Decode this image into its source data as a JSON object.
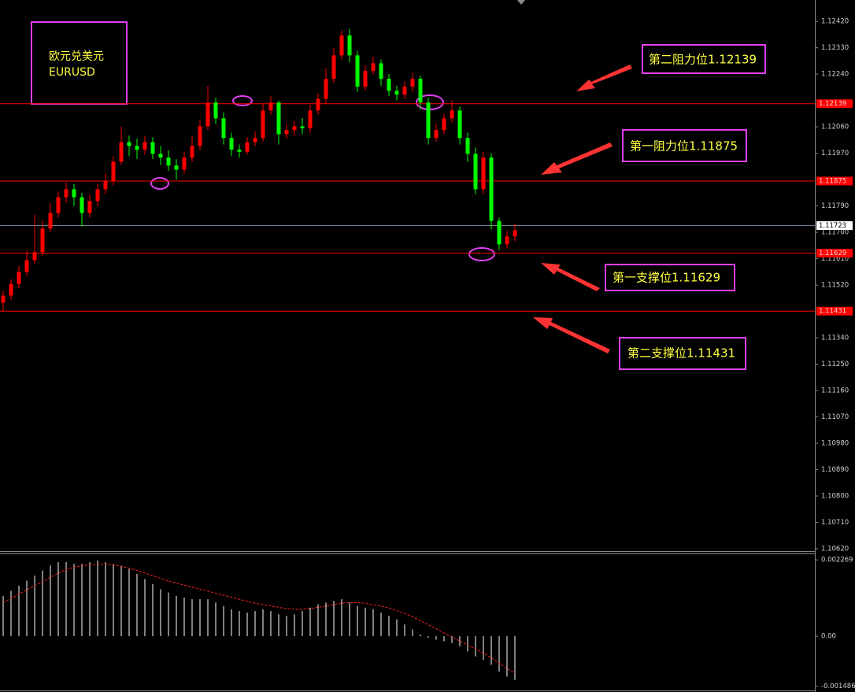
{
  "chart_data": [
    {
      "type": "candlestick",
      "title": "欧元兑美元",
      "subtitle": "EURUSD",
      "annotations": [
        "第二阻力位1.12139",
        "第一阻力位1.11875",
        "第一支撑位1.11629",
        "第二支撑位1.11431"
      ],
      "up_color": "#ff0000",
      "down_color": "#00ff00",
      "ylim": [
        1.10612,
        1.12493
      ],
      "yticks": [
        {
          "value": 1.1242,
          "label": "1.12420"
        },
        {
          "value": 1.1233,
          "label": "1.12330"
        },
        {
          "value": 1.1224,
          "label": "1.12240"
        },
        {
          "value": 1.1206,
          "label": "1.12060"
        },
        {
          "value": 1.1197,
          "label": "1.11970"
        },
        {
          "value": 1.1179,
          "label": "1.11790"
        },
        {
          "value": 1.117,
          "label": "1.11700"
        },
        {
          "value": 1.1161,
          "label": "1.11610"
        },
        {
          "value": 1.1152,
          "label": "1.11520"
        },
        {
          "value": 1.1134,
          "label": "1.11340"
        },
        {
          "value": 1.1125,
          "label": "1.11250"
        },
        {
          "value": 1.1116,
          "label": "1.11160"
        },
        {
          "value": 1.1107,
          "label": "1.11070"
        },
        {
          "value": 1.1098,
          "label": "1.10980"
        },
        {
          "value": 1.1089,
          "label": "1.10890"
        },
        {
          "value": 1.108,
          "label": "1.10800"
        },
        {
          "value": 1.1071,
          "label": "1.10710"
        },
        {
          "value": 1.1062,
          "label": "1.10620"
        }
      ],
      "levels": [
        1.12139,
        1.11875,
        1.11629,
        1.11431
      ],
      "level_color": "#ff0000",
      "last_price": 1.11723,
      "last_price_color": "#708090",
      "open": [
        1.1146,
        1.11484,
        1.11524,
        1.11565,
        1.11605,
        1.11632,
        1.11713,
        1.11766,
        1.1182,
        1.11847,
        1.1182,
        1.11766,
        1.11807,
        1.11847,
        1.11874,
        1.11941,
        1.12008,
        1.11995,
        1.11982,
        1.12008,
        1.11968,
        1.11955,
        1.11928,
        1.11914,
        1.11955,
        1.11995,
        1.12062,
        1.12143,
        1.12089,
        1.12022,
        1.11982,
        1.11975,
        1.12008,
        1.12022,
        1.12116,
        1.12143,
        1.12035,
        1.12049,
        1.12062,
        1.12055,
        1.12116,
        1.12156,
        1.12224,
        1.12304,
        1.12372,
        1.12304,
        1.12197,
        1.12251,
        1.12277,
        1.12224,
        1.12183,
        1.1217,
        1.12197,
        1.12224,
        1.12143,
        1.12022,
        1.12049,
        1.12089,
        1.12116,
        1.12022,
        1.11968,
        1.11847,
        1.11955,
        1.11739,
        1.11659,
        1.11686
      ],
      "high": [
        1.115,
        1.1154,
        1.11585,
        1.1164,
        1.1176,
        1.1174,
        1.118,
        1.1184,
        1.1187,
        1.11865,
        1.11835,
        1.1183,
        1.11865,
        1.119,
        1.1196,
        1.1206,
        1.1203,
        1.1202,
        1.1203,
        1.12025,
        1.11995,
        1.1198,
        1.1195,
        1.11975,
        1.1203,
        1.12085,
        1.122,
        1.1216,
        1.1211,
        1.1204,
        1.12,
        1.12025,
        1.12045,
        1.1214,
        1.12165,
        1.1215,
        1.1207,
        1.1208,
        1.1209,
        1.12135,
        1.12175,
        1.1226,
        1.1233,
        1.1239,
        1.12395,
        1.1232,
        1.1227,
        1.123,
        1.1229,
        1.1224,
        1.122,
        1.12215,
        1.12245,
        1.12235,
        1.1216,
        1.1207,
        1.12105,
        1.1215,
        1.1213,
        1.1204,
        1.1199,
        1.11975,
        1.1197,
        1.1175,
        1.11705,
        1.1173
      ],
      "low": [
        1.11431,
        1.1147,
        1.1151,
        1.1155,
        1.1159,
        1.1162,
        1.117,
        1.1175,
        1.118,
        1.1179,
        1.1172,
        1.1175,
        1.1179,
        1.1183,
        1.1186,
        1.1193,
        1.1196,
        1.1195,
        1.11965,
        1.1195,
        1.1193,
        1.1191,
        1.1188,
        1.119,
        1.1194,
        1.1198,
        1.1205,
        1.1207,
        1.12,
        1.1196,
        1.11955,
        1.11965,
        1.11995,
        1.1201,
        1.121,
        1.12,
        1.1202,
        1.1203,
        1.12035,
        1.1204,
        1.121,
        1.1214,
        1.1221,
        1.1229,
        1.1228,
        1.1218,
        1.12185,
        1.1224,
        1.122,
        1.12165,
        1.1215,
        1.12155,
        1.1218,
        1.1212,
        1.12,
        1.1201,
        1.12035,
        1.12075,
        1.12,
        1.1194,
        1.1183,
        1.1183,
        1.1171,
        1.1164,
        1.11645,
        1.1167
      ],
      "close": [
        1.11484,
        1.11524,
        1.11565,
        1.11605,
        1.11632,
        1.11713,
        1.11766,
        1.1182,
        1.11847,
        1.1182,
        1.11766,
        1.11807,
        1.11847,
        1.11874,
        1.11941,
        1.12008,
        1.11995,
        1.11982,
        1.12008,
        1.11968,
        1.11955,
        1.11928,
        1.11914,
        1.11955,
        1.11995,
        1.12062,
        1.12143,
        1.12089,
        1.12022,
        1.11982,
        1.11975,
        1.12008,
        1.12022,
        1.12116,
        1.12143,
        1.12035,
        1.12049,
        1.12062,
        1.12055,
        1.12116,
        1.12156,
        1.12224,
        1.12304,
        1.12372,
        1.12304,
        1.12197,
        1.12251,
        1.12277,
        1.12224,
        1.12183,
        1.1217,
        1.12197,
        1.12224,
        1.12143,
        1.12022,
        1.12049,
        1.12089,
        1.12116,
        1.12022,
        1.11968,
        1.11847,
        1.11955,
        1.11739,
        1.11659,
        1.11686,
        1.11707
      ]
    },
    {
      "type": "macd",
      "ylim": [
        -0.00161,
        0.00246
      ],
      "yticks": [
        0.002269,
        {
          "value": 0,
          "label": "0.00"
        },
        -0.001486
      ],
      "series": [
        {
          "type": "bar",
          "color": "#ffffff",
          "values": [
            0.0012,
            0.00135,
            0.0015,
            0.00165,
            0.0018,
            0.00195,
            0.0021,
            0.0022,
            0.0022,
            0.00215,
            0.00215,
            0.0022,
            0.00225,
            0.0022,
            0.00215,
            0.0021,
            0.002,
            0.00185,
            0.0017,
            0.00155,
            0.0014,
            0.0013,
            0.0012,
            0.00115,
            0.0011,
            0.0011,
            0.0011,
            0.001,
            0.0009,
            0.0008,
            0.00075,
            0.0007,
            0.00075,
            0.0008,
            0.00075,
            0.00065,
            0.0006,
            0.00065,
            0.00075,
            0.00085,
            0.00095,
            0.001,
            0.00105,
            0.0011,
            0.001,
            0.0009,
            0.00085,
            0.0008,
            0.0007,
            0.0006,
            0.0005,
            0.00035,
            0.0002,
            5e-05,
            -5e-05,
            -0.0001,
            -0.00015,
            -0.0002,
            -0.0003,
            -0.00045,
            -0.0006,
            -0.0007,
            -0.00085,
            -0.00105,
            -0.0012,
            -0.0013
          ]
        },
        {
          "type": "line",
          "color": "#ff2020",
          "dashed": true,
          "values": [
            0.001,
            0.00112,
            0.00125,
            0.00138,
            0.0015,
            0.00162,
            0.00175,
            0.00188,
            0.00198,
            0.00205,
            0.0021,
            0.00212,
            0.00214,
            0.00214,
            0.00212,
            0.00208,
            0.00202,
            0.00196,
            0.00188,
            0.0018,
            0.00172,
            0.00164,
            0.00158,
            0.00152,
            0.00146,
            0.0014,
            0.00134,
            0.00128,
            0.00122,
            0.00116,
            0.0011,
            0.00104,
            0.00098,
            0.00094,
            0.0009,
            0.00086,
            0.00082,
            0.0008,
            0.0008,
            0.00082,
            0.00086,
            0.0009,
            0.00094,
            0.00098,
            0.001,
            0.001,
            0.00098,
            0.00094,
            0.0009,
            0.00084,
            0.00076,
            0.00068,
            0.00058,
            0.00046,
            0.00034,
            0.00022,
            0.0001,
            -2e-05,
            -0.00014,
            -0.00026,
            -0.00038,
            -0.0005,
            -0.00064,
            -0.0008,
            -0.00096,
            -0.0011
          ]
        }
      ]
    }
  ]
}
